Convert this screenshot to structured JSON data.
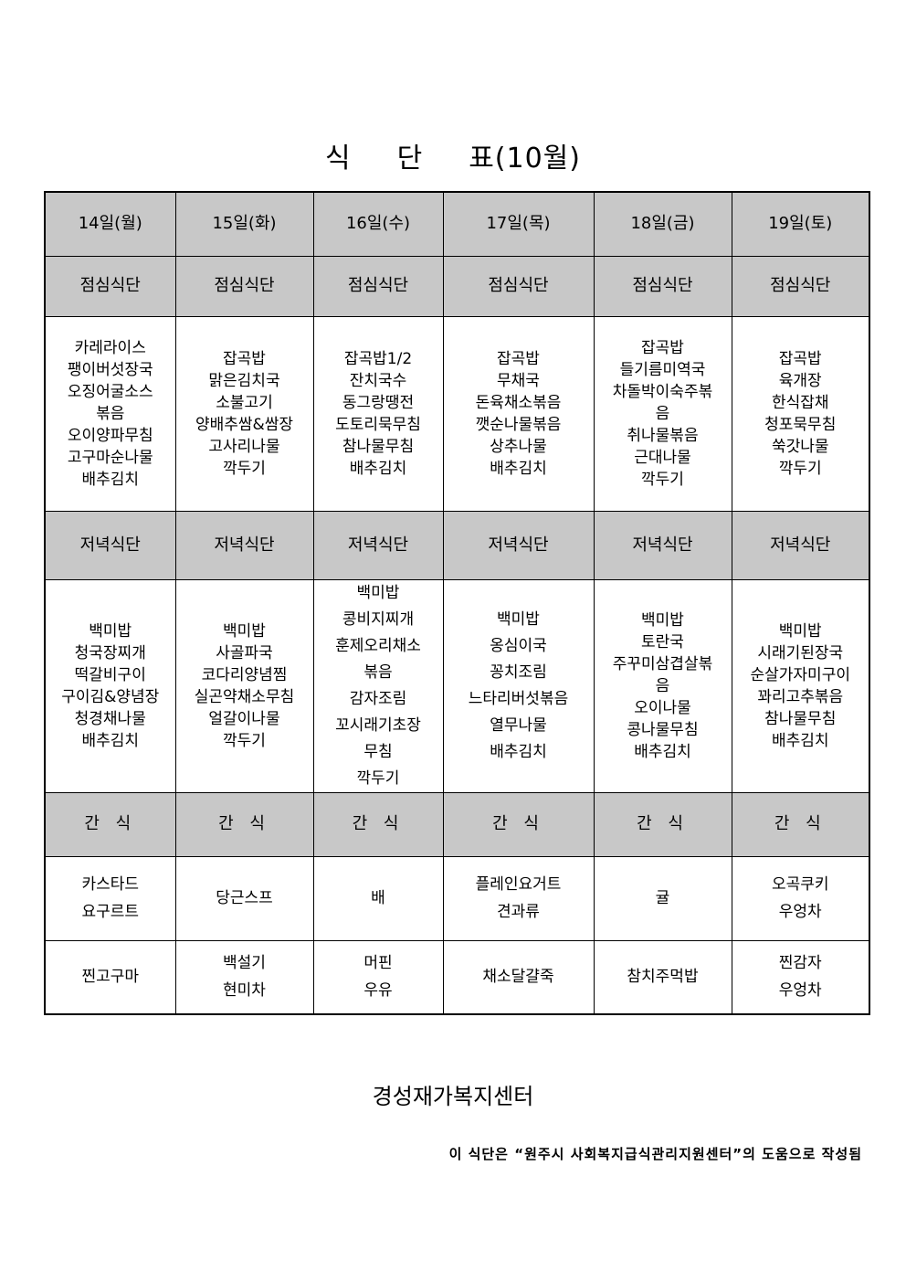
{
  "title": {
    "part1": "식",
    "part2": "단",
    "part3": "표(10월)"
  },
  "days": [
    "14일(월)",
    "15일(화)",
    "16일(수)",
    "17일(목)",
    "18일(금)",
    "19일(토)"
  ],
  "lunch": {
    "label": "점심식단",
    "menus": [
      [
        "카레라이스",
        "팽이버섯장국",
        "오징어굴소스",
        "볶음",
        "오이양파무침",
        "고구마순나물",
        "배추김치"
      ],
      [
        "잡곡밥",
        "맑은김치국",
        "소불고기",
        "양배추쌈&쌈장",
        "고사리나물",
        "깍두기"
      ],
      [
        "잡곡밥1/2",
        "잔치국수",
        "동그랑땡전",
        "도토리묵무침",
        "참나물무침",
        "배추김치"
      ],
      [
        "잡곡밥",
        "무채국",
        "돈육채소볶음",
        "깻순나물볶음",
        "상추나물",
        "배추김치"
      ],
      [
        "잡곡밥",
        "들기름미역국",
        "차돌박이숙주볶",
        "음",
        "취나물볶음",
        "근대나물",
        "깍두기"
      ],
      [
        "잡곡밥",
        "육개장",
        "한식잡채",
        "청포묵무침",
        "쑥갓나물",
        "깍두기"
      ]
    ]
  },
  "dinner": {
    "label": "저녁식단",
    "menus": [
      [
        "백미밥",
        "청국장찌개",
        "떡갈비구이",
        "구이김&양념장",
        "청경채나물",
        "배추김치"
      ],
      [
        "백미밥",
        "사골파국",
        "코다리양념찜",
        "실곤약채소무침",
        "얼갈이나물",
        "깍두기"
      ],
      [
        "백미밥",
        "콩비지찌개",
        "훈제오리채소",
        "볶음",
        "감자조림",
        "꼬시래기초장",
        "무침",
        "깍두기"
      ],
      [
        "백미밥",
        "옹심이국",
        "꽁치조림",
        "느타리버섯볶음",
        "열무나물",
        "배추김치"
      ],
      [
        "백미밥",
        "토란국",
        "주꾸미삼겹살볶",
        "음",
        "오이나물",
        "콩나물무침",
        "배추김치"
      ],
      [
        "백미밥",
        "시래기된장국",
        "순살가자미구이",
        "꽈리고추볶음",
        "참나물무침",
        "배추김치"
      ]
    ]
  },
  "snack": {
    "label": "간 식",
    "am": [
      [
        "카스타드",
        "요구르트"
      ],
      [
        "당근스프"
      ],
      [
        "배"
      ],
      [
        "플레인요거트",
        "견과류"
      ],
      [
        "귤"
      ],
      [
        "오곡쿠키",
        "우엉차"
      ]
    ],
    "pm": [
      [
        "찐고구마"
      ],
      [
        "백설기",
        "현미차"
      ],
      [
        "머핀",
        "우유"
      ],
      [
        "채소달걀죽"
      ],
      [
        "참치주먹밥"
      ],
      [
        "찐감자",
        "우엉차"
      ]
    ]
  },
  "footer": {
    "organization": "경성재가복지센터",
    "note": "이 식단은 “원주시 사회복지급식관리지원센터”의 도움으로 작성됨"
  },
  "colors": {
    "header_bg": "#c8c8c8"
  }
}
